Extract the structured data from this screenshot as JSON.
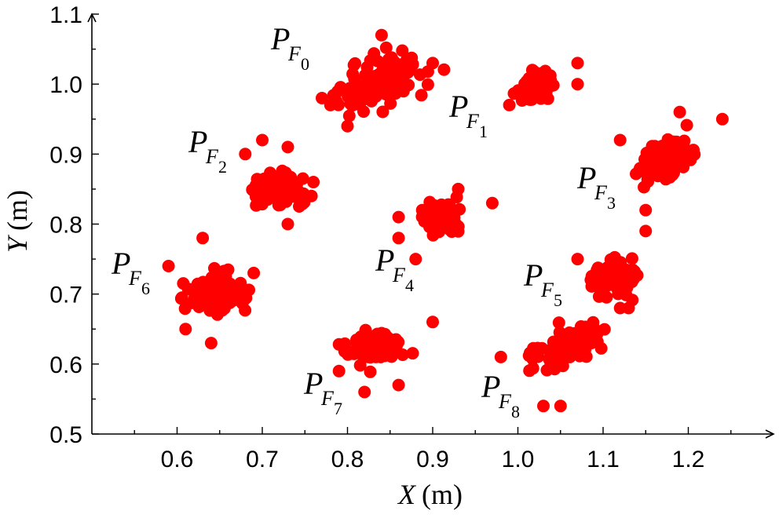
{
  "chart_data": {
    "type": "scatter",
    "title": "",
    "xlabel_var": "X",
    "xlabel_unit": "(m)",
    "ylabel_var": "Y",
    "ylabel_unit": "(m)",
    "xlim": [
      0.5,
      1.3
    ],
    "ylim": [
      0.5,
      1.1
    ],
    "xticks": [
      "0.6",
      "0.7",
      "0.8",
      "0.9",
      "1.0",
      "1.1",
      "1.2"
    ],
    "yticks": [
      "0.5",
      "0.6",
      "0.7",
      "0.8",
      "0.9",
      "1.0",
      "1.1"
    ],
    "grid": false,
    "marker_color": "#ff0000",
    "clusters": [
      {
        "label": "P",
        "sub": "F",
        "subsub": "0",
        "center": [
          0.84,
          1.005
        ],
        "spread": [
          0.045,
          0.03
        ],
        "tilt": 0.45,
        "n": 110,
        "points": [
          [
            0.77,
            0.98
          ],
          [
            0.9,
            1.03
          ],
          [
            0.78,
            0.97
          ],
          [
            0.8,
            0.94
          ],
          [
            0.84,
            1.07
          ]
        ]
      },
      {
        "label": "P",
        "sub": "F",
        "subsub": "1",
        "center": [
          1.02,
          0.995
        ],
        "spread": [
          0.02,
          0.016
        ],
        "tilt": 0.3,
        "n": 80,
        "points": [
          [
            1.07,
            1.03
          ],
          [
            1.07,
            1.0
          ],
          [
            0.99,
            0.97
          ]
        ]
      },
      {
        "label": "P",
        "sub": "F",
        "subsub": "2",
        "center": [
          1.17,
          0.89
        ],
        "spread": [
          0.03,
          0.025
        ],
        "tilt": 0.55,
        "n": 90,
        "points": [
          [
            1.24,
            0.95
          ],
          [
            1.19,
            0.96
          ],
          [
            1.15,
            0.82
          ],
          [
            1.12,
            0.92
          ]
        ]
      },
      {
        "label": "P",
        "sub": "F",
        "subsub": "3",
        "center": [
          0.72,
          0.85
        ],
        "spread": [
          0.025,
          0.018
        ],
        "tilt": 0.1,
        "n": 90,
        "points": [
          [
            0.68,
            0.9
          ],
          [
            0.7,
            0.92
          ],
          [
            0.73,
            0.91
          ],
          [
            0.76,
            0.86
          ],
          [
            0.73,
            0.8
          ]
        ]
      },
      {
        "label": "P",
        "sub": "F",
        "subsub": "4",
        "center": [
          0.91,
          0.81
        ],
        "spread": [
          0.022,
          0.017
        ],
        "tilt": 0.15,
        "n": 80,
        "points": [
          [
            0.86,
            0.78
          ],
          [
            0.88,
            0.75
          ],
          [
            0.97,
            0.83
          ],
          [
            0.93,
            0.85
          ],
          [
            0.86,
            0.81
          ]
        ]
      },
      {
        "label": "P",
        "sub": "F",
        "subsub": "5",
        "center": [
          1.115,
          0.725
        ],
        "spread": [
          0.022,
          0.02
        ],
        "tilt": 0.2,
        "n": 90,
        "points": [
          [
            1.15,
            0.79
          ],
          [
            1.07,
            0.75
          ],
          [
            1.13,
            0.68
          ],
          [
            1.1,
            0.7
          ]
        ]
      },
      {
        "label": "P",
        "sub": "F",
        "subsub": "6",
        "center": [
          0.65,
          0.7
        ],
        "spread": [
          0.028,
          0.022
        ],
        "tilt": 0.05,
        "n": 110,
        "points": [
          [
            0.63,
            0.78
          ],
          [
            0.59,
            0.74
          ],
          [
            0.64,
            0.63
          ],
          [
            0.69,
            0.73
          ],
          [
            0.61,
            0.65
          ]
        ]
      },
      {
        "label": "P",
        "sub": "F",
        "subsub": "7",
        "center": [
          0.83,
          0.625
        ],
        "spread": [
          0.025,
          0.02
        ],
        "tilt": 0.15,
        "n": 100,
        "points": [
          [
            0.79,
            0.59
          ],
          [
            0.82,
            0.56
          ],
          [
            0.9,
            0.66
          ],
          [
            0.86,
            0.57
          ]
        ]
      },
      {
        "label": "P",
        "sub": "F",
        "subsub": "8",
        "center": [
          1.06,
          0.625
        ],
        "spread": [
          0.035,
          0.022
        ],
        "tilt": 0.45,
        "n": 110,
        "points": [
          [
            1.03,
            0.54
          ],
          [
            1.05,
            0.54
          ],
          [
            0.98,
            0.61
          ],
          [
            1.12,
            0.68
          ],
          [
            1.09,
            0.65
          ]
        ]
      }
    ]
  }
}
